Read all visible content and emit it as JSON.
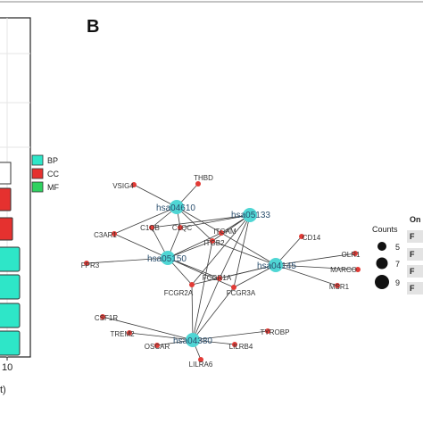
{
  "panel_label": "B",
  "colors": {
    "bp": "#2ee6c8",
    "cc": "#e5312f",
    "mf": "#2fd15f",
    "hub": "#4fd6d4",
    "gene": "#e23b36",
    "edge": "#3a3a3a"
  },
  "legend_categories": [
    {
      "key": "bp",
      "label": "BP"
    },
    {
      "key": "cc",
      "label": "CC"
    },
    {
      "key": "mf",
      "label": "MF"
    }
  ],
  "counts_legend": {
    "title": "Counts",
    "values": [
      "5",
      "7",
      "9"
    ]
  },
  "left_axis": {
    "tick": "10",
    "label_fragment": "t)"
  },
  "right_table": {
    "header_fragment": "On",
    "row_fragments": [
      "F",
      "F",
      "F",
      "F"
    ]
  },
  "hubs": [
    {
      "id": "hsa04610",
      "label": "hsa04610"
    },
    {
      "id": "hsa05133",
      "label": "hsa05133"
    },
    {
      "id": "hsa05150",
      "label": "hsa05150"
    },
    {
      "id": "hsa04145",
      "label": "hsa04145"
    },
    {
      "id": "hsa04380",
      "label": "hsa04380"
    }
  ],
  "genes": [
    {
      "id": "THBD",
      "label": "THBD"
    },
    {
      "id": "VSIG4",
      "label": "VSIG4"
    },
    {
      "id": "C3AR1",
      "label": "C3AR1"
    },
    {
      "id": "C1QB",
      "label": "C1QB"
    },
    {
      "id": "C1QC",
      "label": "C1QC"
    },
    {
      "id": "ITGAM",
      "label": "ITGAM"
    },
    {
      "id": "CD14",
      "label": "CD14"
    },
    {
      "id": "ITGB2",
      "label": "ITGB2"
    },
    {
      "id": "FPR3",
      "label": "FPR3"
    },
    {
      "id": "OLR1",
      "label": "OLR1"
    },
    {
      "id": "MARCO",
      "label": "MARCO"
    },
    {
      "id": "MSR1",
      "label": "MSR1"
    },
    {
      "id": "FCGR1A",
      "label": "FCGR1A"
    },
    {
      "id": "FCGR2A",
      "label": "FCGR2A"
    },
    {
      "id": "FCGR3A",
      "label": "FCGR3A"
    },
    {
      "id": "CSF1R",
      "label": "CSF1R"
    },
    {
      "id": "TREM2",
      "label": "TREM2"
    },
    {
      "id": "OSCAR",
      "label": "OSCAR"
    },
    {
      "id": "LILRA6",
      "label": "LILRA6"
    },
    {
      "id": "LILRB4",
      "label": "LILRB4"
    },
    {
      "id": "TYROBP",
      "label": "TYROBP"
    }
  ],
  "edges": [
    [
      "hsa04610",
      "THBD"
    ],
    [
      "hsa04610",
      "VSIG4"
    ],
    [
      "hsa04610",
      "C3AR1"
    ],
    [
      "hsa04610",
      "C1QB"
    ],
    [
      "hsa04610",
      "C1QC"
    ],
    [
      "hsa04610",
      "ITGAM"
    ],
    [
      "hsa04610",
      "ITGB2"
    ],
    [
      "hsa05133",
      "C1QB"
    ],
    [
      "hsa05133",
      "C1QC"
    ],
    [
      "hsa05133",
      "ITGAM"
    ],
    [
      "hsa05133",
      "ITGB2"
    ],
    [
      "hsa05133",
      "FCGR1A"
    ],
    [
      "hsa05133",
      "FCGR2A"
    ],
    [
      "hsa05133",
      "FCGR3A"
    ],
    [
      "hsa05150",
      "C3AR1"
    ],
    [
      "hsa05150",
      "C1QB"
    ],
    [
      "hsa05150",
      "C1QC"
    ],
    [
      "hsa05150",
      "ITGAM"
    ],
    [
      "hsa05150",
      "ITGB2"
    ],
    [
      "hsa05150",
      "FPR3"
    ],
    [
      "hsa05150",
      "FCGR1A"
    ],
    [
      "hsa05150",
      "FCGR2A"
    ],
    [
      "hsa05150",
      "FCGR3A"
    ],
    [
      "hsa04145",
      "CD14"
    ],
    [
      "hsa04145",
      "ITGAM"
    ],
    [
      "hsa04145",
      "ITGB2"
    ],
    [
      "hsa04145",
      "OLR1"
    ],
    [
      "hsa04145",
      "MARCO"
    ],
    [
      "hsa04145",
      "MSR1"
    ],
    [
      "hsa04145",
      "FCGR1A"
    ],
    [
      "hsa04145",
      "FCGR2A"
    ],
    [
      "hsa04145",
      "FCGR3A"
    ],
    [
      "hsa04380",
      "CSF1R"
    ],
    [
      "hsa04380",
      "TREM2"
    ],
    [
      "hsa04380",
      "OSCAR"
    ],
    [
      "hsa04380",
      "LILRA6"
    ],
    [
      "hsa04380",
      "LILRB4"
    ],
    [
      "hsa04380",
      "TYROBP"
    ],
    [
      "hsa04380",
      "FCGR1A"
    ],
    [
      "hsa04380",
      "FCGR2A"
    ],
    [
      "hsa04380",
      "FCGR3A"
    ],
    [
      "hsa04380",
      "ITGB2"
    ]
  ]
}
